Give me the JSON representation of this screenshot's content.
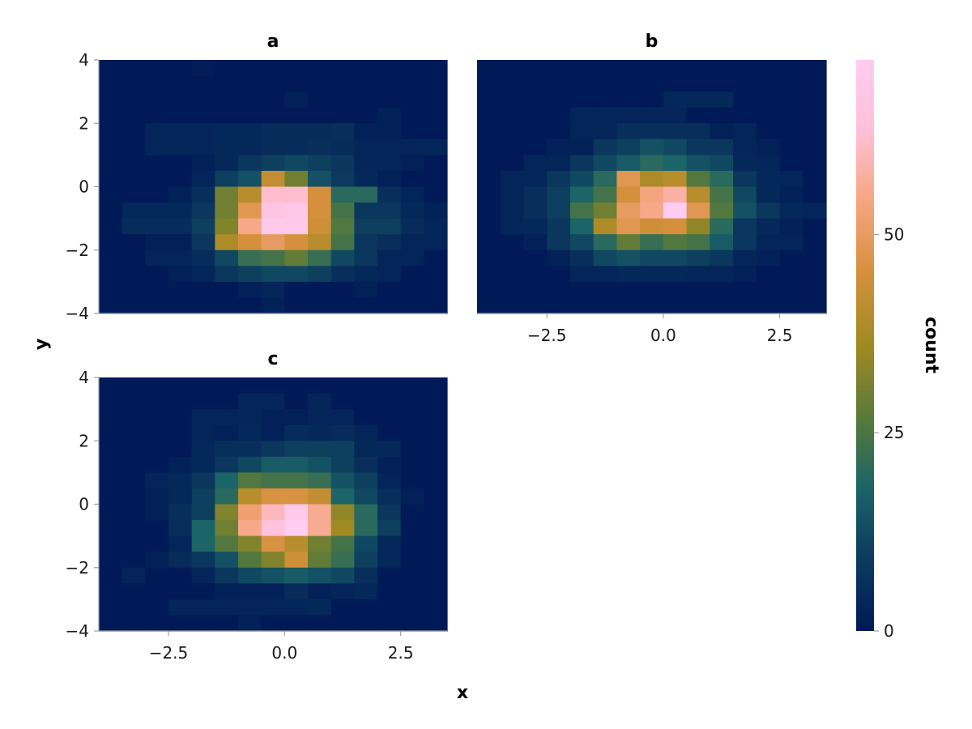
{
  "chart_data": {
    "type": "heatmap",
    "xlabel": "x",
    "ylabel": "y",
    "colorbar": {
      "label": "count",
      "range": [
        0,
        72
      ],
      "ticks": [
        0,
        25,
        50
      ],
      "tick_labels": [
        "0",
        "25",
        "50"
      ]
    },
    "colormap": [
      "#001a57",
      "#0c3a5e",
      "#1b6468",
      "#5a7a3a",
      "#a08a22",
      "#d4903c",
      "#f5a57e",
      "#ffc0d8",
      "#ffccf2"
    ],
    "x_ticks": [
      -2.5,
      0.0,
      2.5
    ],
    "x_tick_labels": [
      "−2.5",
      "0.0",
      "2.5"
    ],
    "y_ticks": [
      -4,
      -2,
      0,
      2,
      4
    ],
    "y_tick_labels": [
      "−4",
      "−2",
      "0",
      "2",
      "4"
    ],
    "xlim": [
      -4,
      3.5
    ],
    "ylim": [
      -4,
      4
    ],
    "bins": {
      "x_start": -4,
      "x_step": 0.5,
      "nx": 15,
      "y_start": -4,
      "y_step": 0.5,
      "ny": 16
    },
    "panels": [
      {
        "title": "a",
        "counts": [
          [
            0,
            0,
            0,
            0,
            1,
            0,
            0,
            0,
            0,
            0,
            0,
            0,
            0,
            0,
            0
          ],
          [
            0,
            0,
            0,
            0,
            0,
            0,
            0,
            0,
            0,
            0,
            0,
            0,
            0,
            0,
            0
          ],
          [
            0,
            0,
            0,
            0,
            0,
            0,
            0,
            0,
            2,
            0,
            0,
            0,
            0,
            0,
            0
          ],
          [
            0,
            0,
            0,
            0,
            0,
            0,
            0,
            0,
            0,
            0,
            0,
            0,
            2,
            0,
            0
          ],
          [
            0,
            0,
            3,
            3,
            3,
            4,
            4,
            5,
            5,
            5,
            6,
            2,
            2,
            0,
            0
          ],
          [
            0,
            0,
            3,
            3,
            3,
            4,
            4,
            5,
            5,
            6,
            5,
            3,
            3,
            3,
            3
          ],
          [
            0,
            0,
            0,
            0,
            2,
            4,
            8,
            10,
            12,
            10,
            8,
            3,
            3,
            2,
            0
          ],
          [
            0,
            0,
            0,
            0,
            3,
            10,
            14,
            42,
            30,
            14,
            9,
            4,
            2,
            0,
            0
          ],
          [
            0,
            0,
            0,
            2,
            6,
            30,
            40,
            62,
            62,
            45,
            20,
            20,
            6,
            3,
            0
          ],
          [
            0,
            4,
            4,
            4,
            8,
            30,
            48,
            66,
            68,
            45,
            24,
            8,
            8,
            4,
            2
          ],
          [
            0,
            5,
            5,
            5,
            10,
            32,
            55,
            70,
            70,
            44,
            26,
            10,
            10,
            5,
            3
          ],
          [
            0,
            0,
            2,
            2,
            8,
            38,
            45,
            50,
            45,
            40,
            24,
            8,
            6,
            3,
            3
          ],
          [
            0,
            0,
            3,
            3,
            5,
            12,
            22,
            24,
            28,
            22,
            12,
            8,
            3,
            3,
            0
          ],
          [
            0,
            0,
            0,
            2,
            3,
            8,
            10,
            12,
            12,
            10,
            6,
            4,
            3,
            0,
            0
          ],
          [
            0,
            0,
            0,
            0,
            0,
            0,
            2,
            3,
            0,
            0,
            0,
            2,
            0,
            0,
            0
          ],
          [
            0,
            0,
            0,
            0,
            0,
            0,
            0,
            2,
            0,
            0,
            0,
            0,
            0,
            0,
            0
          ]
        ]
      },
      {
        "title": "b",
        "counts": [
          [
            0,
            0,
            0,
            0,
            0,
            0,
            0,
            0,
            0,
            0,
            0,
            0,
            0,
            0,
            0
          ],
          [
            0,
            0,
            0,
            0,
            0,
            0,
            0,
            0,
            0,
            0,
            0,
            0,
            0,
            0,
            0
          ],
          [
            0,
            0,
            0,
            0,
            0,
            0,
            0,
            0,
            4,
            4,
            4,
            0,
            0,
            0,
            0
          ],
          [
            0,
            0,
            0,
            0,
            3,
            3,
            3,
            3,
            3,
            0,
            0,
            0,
            0,
            0,
            0
          ],
          [
            0,
            0,
            0,
            0,
            3,
            3,
            6,
            6,
            6,
            6,
            2,
            3,
            0,
            0,
            0
          ],
          [
            0,
            0,
            0,
            2,
            2,
            8,
            10,
            14,
            12,
            8,
            8,
            3,
            2,
            0,
            0
          ],
          [
            0,
            0,
            3,
            3,
            8,
            12,
            16,
            20,
            18,
            14,
            12,
            4,
            3,
            0,
            0
          ],
          [
            0,
            3,
            3,
            8,
            12,
            20,
            48,
            38,
            40,
            26,
            20,
            8,
            4,
            3,
            0
          ],
          [
            0,
            3,
            6,
            10,
            18,
            24,
            45,
            54,
            58,
            40,
            24,
            12,
            4,
            2,
            0
          ],
          [
            0,
            3,
            6,
            10,
            24,
            30,
            50,
            55,
            72,
            48,
            26,
            14,
            8,
            4,
            3
          ],
          [
            0,
            3,
            4,
            8,
            18,
            38,
            48,
            44,
            45,
            34,
            20,
            8,
            4,
            2,
            0
          ],
          [
            0,
            0,
            2,
            8,
            12,
            20,
            28,
            22,
            26,
            24,
            16,
            8,
            3,
            3,
            0
          ],
          [
            0,
            0,
            0,
            2,
            6,
            12,
            14,
            12,
            12,
            10,
            8,
            3,
            2,
            0,
            0
          ],
          [
            0,
            0,
            0,
            0,
            3,
            3,
            4,
            4,
            4,
            3,
            3,
            2,
            0,
            0,
            0
          ],
          [
            0,
            0,
            0,
            0,
            0,
            0,
            0,
            0,
            0,
            0,
            0,
            0,
            0,
            0,
            0
          ],
          [
            0,
            0,
            0,
            0,
            0,
            0,
            0,
            0,
            0,
            0,
            0,
            0,
            0,
            0,
            0
          ]
        ]
      },
      {
        "title": "c",
        "counts": [
          [
            0,
            0,
            0,
            0,
            0,
            0,
            0,
            0,
            0,
            0,
            0,
            0,
            0,
            0,
            0
          ],
          [
            0,
            0,
            0,
            0,
            0,
            0,
            3,
            3,
            0,
            3,
            0,
            0,
            0,
            0,
            0
          ],
          [
            0,
            0,
            0,
            0,
            3,
            3,
            3,
            2,
            2,
            3,
            3,
            0,
            0,
            0,
            0
          ],
          [
            0,
            0,
            0,
            0,
            3,
            2,
            4,
            2,
            5,
            4,
            5,
            3,
            0,
            0,
            0
          ],
          [
            0,
            0,
            0,
            0,
            4,
            6,
            6,
            8,
            10,
            10,
            10,
            4,
            4,
            0,
            0
          ],
          [
            0,
            0,
            0,
            2,
            4,
            8,
            12,
            16,
            16,
            14,
            10,
            6,
            2,
            0,
            0
          ],
          [
            0,
            0,
            3,
            4,
            8,
            18,
            26,
            24,
            24,
            22,
            14,
            10,
            3,
            0,
            0
          ],
          [
            0,
            0,
            2,
            4,
            10,
            20,
            40,
            46,
            46,
            42,
            18,
            12,
            6,
            2,
            0
          ],
          [
            0,
            0,
            2,
            6,
            10,
            32,
            52,
            60,
            70,
            56,
            34,
            20,
            8,
            0,
            0
          ],
          [
            0,
            0,
            0,
            6,
            18,
            30,
            55,
            64,
            72,
            56,
            36,
            20,
            10,
            0,
            0
          ],
          [
            0,
            0,
            0,
            3,
            18,
            26,
            32,
            46,
            40,
            30,
            24,
            12,
            4,
            0,
            0
          ],
          [
            0,
            0,
            2,
            5,
            8,
            14,
            26,
            32,
            44,
            28,
            22,
            10,
            4,
            0,
            0
          ],
          [
            0,
            3,
            0,
            0,
            3,
            8,
            12,
            14,
            16,
            14,
            12,
            6,
            0,
            0,
            0
          ],
          [
            0,
            0,
            0,
            0,
            0,
            2,
            2,
            2,
            5,
            2,
            3,
            4,
            0,
            0,
            0
          ],
          [
            0,
            0,
            0,
            3,
            3,
            3,
            3,
            3,
            3,
            4,
            0,
            0,
            0,
            0,
            0
          ],
          [
            0,
            0,
            0,
            0,
            0,
            0,
            2,
            0,
            0,
            0,
            0,
            0,
            0,
            0,
            0
          ]
        ]
      }
    ]
  }
}
